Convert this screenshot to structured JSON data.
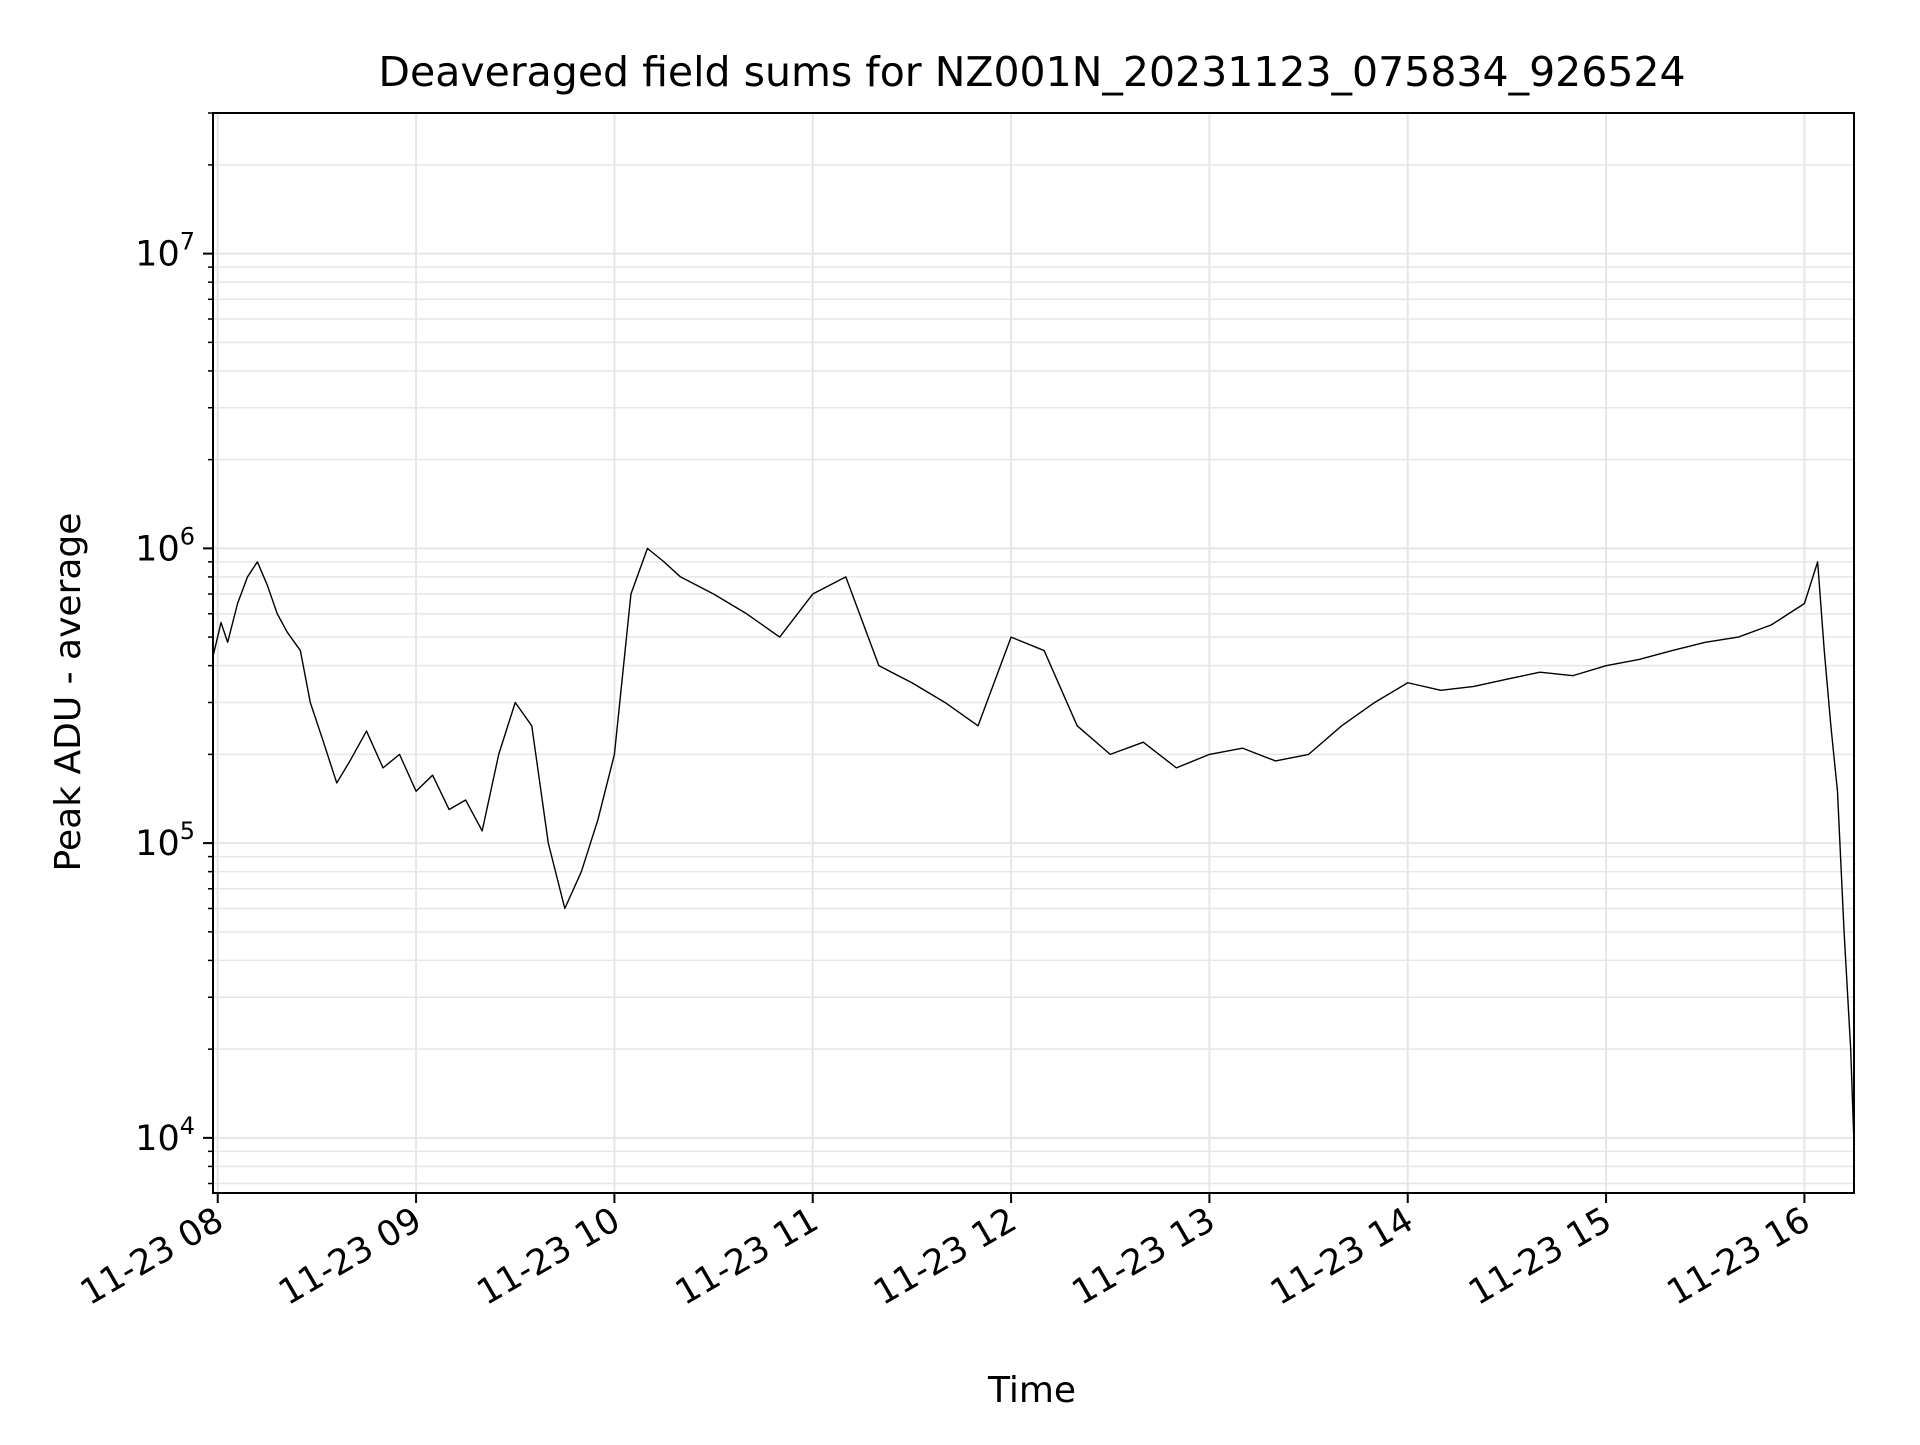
{
  "chart_data": {
    "type": "line",
    "title": "Deaveraged field sums for NZ001N_20231123_075834_926524",
    "xlabel": "Time",
    "ylabel": "Peak ADU - average",
    "yscale": "log",
    "ylim": [
      6500,
      30000000
    ],
    "xlim": [
      "2023-11-23 07:58:34",
      "2023-11-23 16:15:00"
    ],
    "x_ticks": [
      {
        "value": "2023-11-23 08:00",
        "label": "11-23 08"
      },
      {
        "value": "2023-11-23 09:00",
        "label": "11-23 09"
      },
      {
        "value": "2023-11-23 10:00",
        "label": "11-23 10"
      },
      {
        "value": "2023-11-23 11:00",
        "label": "11-23 11"
      },
      {
        "value": "2023-11-23 12:00",
        "label": "11-23 12"
      },
      {
        "value": "2023-11-23 13:00",
        "label": "11-23 13"
      },
      {
        "value": "2023-11-23 14:00",
        "label": "11-23 14"
      },
      {
        "value": "2023-11-23 15:00",
        "label": "11-23 15"
      },
      {
        "value": "2023-11-23 16:00",
        "label": "11-23 16"
      }
    ],
    "y_ticks": [
      {
        "value": 10000,
        "base": "10",
        "exp": "4"
      },
      {
        "value": 100000,
        "base": "10",
        "exp": "5"
      },
      {
        "value": 1000000,
        "base": "10",
        "exp": "6"
      },
      {
        "value": 10000000,
        "base": "10",
        "exp": "7"
      }
    ],
    "grid": true,
    "line_color": "#000000",
    "grid_color": "#e6e6e6",
    "series": [
      {
        "points": [
          [
            "2023-11-23 07:58:34",
            430000
          ],
          [
            "2023-11-23 08:01",
            560000
          ],
          [
            "2023-11-23 08:03",
            480000
          ],
          [
            "2023-11-23 08:06",
            650000
          ],
          [
            "2023-11-23 08:09",
            800000
          ],
          [
            "2023-11-23 08:12",
            900000
          ],
          [
            "2023-11-23 08:15",
            750000
          ],
          [
            "2023-11-23 08:18",
            600000
          ],
          [
            "2023-11-23 08:21",
            520000
          ],
          [
            "2023-11-23 08:25",
            450000
          ],
          [
            "2023-11-23 08:28",
            300000
          ],
          [
            "2023-11-23 08:32",
            220000
          ],
          [
            "2023-11-23 08:36",
            160000
          ],
          [
            "2023-11-23 08:40",
            190000
          ],
          [
            "2023-11-23 08:45",
            240000
          ],
          [
            "2023-11-23 08:50",
            180000
          ],
          [
            "2023-11-23 08:55",
            200000
          ],
          [
            "2023-11-23 09:00",
            150000
          ],
          [
            "2023-11-23 09:05",
            170000
          ],
          [
            "2023-11-23 09:10",
            130000
          ],
          [
            "2023-11-23 09:15",
            140000
          ],
          [
            "2023-11-23 09:20",
            110000
          ],
          [
            "2023-11-23 09:25",
            200000
          ],
          [
            "2023-11-23 09:30",
            300000
          ],
          [
            "2023-11-23 09:35",
            250000
          ],
          [
            "2023-11-23 09:40",
            100000
          ],
          [
            "2023-11-23 09:45",
            60000
          ],
          [
            "2023-11-23 09:50",
            80000
          ],
          [
            "2023-11-23 09:55",
            120000
          ],
          [
            "2023-11-23 10:00",
            200000
          ],
          [
            "2023-11-23 10:05",
            700000
          ],
          [
            "2023-11-23 10:10",
            1000000
          ],
          [
            "2023-11-23 10:15",
            900000
          ],
          [
            "2023-11-23 10:20",
            800000
          ],
          [
            "2023-11-23 10:30",
            700000
          ],
          [
            "2023-11-23 10:40",
            600000
          ],
          [
            "2023-11-23 10:50",
            500000
          ],
          [
            "2023-11-23 11:00",
            700000
          ],
          [
            "2023-11-23 11:10",
            800000
          ],
          [
            "2023-11-23 11:20",
            400000
          ],
          [
            "2023-11-23 11:30",
            350000
          ],
          [
            "2023-11-23 11:40",
            300000
          ],
          [
            "2023-11-23 11:50",
            250000
          ],
          [
            "2023-11-23 12:00",
            500000
          ],
          [
            "2023-11-23 12:10",
            450000
          ],
          [
            "2023-11-23 12:20",
            250000
          ],
          [
            "2023-11-23 12:30",
            200000
          ],
          [
            "2023-11-23 12:40",
            220000
          ],
          [
            "2023-11-23 12:50",
            180000
          ],
          [
            "2023-11-23 13:00",
            200000
          ],
          [
            "2023-11-23 13:10",
            210000
          ],
          [
            "2023-11-23 13:20",
            190000
          ],
          [
            "2023-11-23 13:30",
            200000
          ],
          [
            "2023-11-23 13:40",
            250000
          ],
          [
            "2023-11-23 13:50",
            300000
          ],
          [
            "2023-11-23 14:00",
            350000
          ],
          [
            "2023-11-23 14:10",
            330000
          ],
          [
            "2023-11-23 14:20",
            340000
          ],
          [
            "2023-11-23 14:30",
            360000
          ],
          [
            "2023-11-23 14:40",
            380000
          ],
          [
            "2023-11-23 14:50",
            370000
          ],
          [
            "2023-11-23 15:00",
            400000
          ],
          [
            "2023-11-23 15:10",
            420000
          ],
          [
            "2023-11-23 15:20",
            450000
          ],
          [
            "2023-11-23 15:30",
            480000
          ],
          [
            "2023-11-23 15:40",
            500000
          ],
          [
            "2023-11-23 15:50",
            550000
          ],
          [
            "2023-11-23 16:00",
            650000
          ],
          [
            "2023-11-23 16:04",
            900000
          ],
          [
            "2023-11-23 16:06",
            450000
          ],
          [
            "2023-11-23 16:08",
            250000
          ],
          [
            "2023-11-23 16:10",
            150000
          ],
          [
            "2023-11-23 16:12",
            50000
          ],
          [
            "2023-11-23 16:14",
            20000
          ],
          [
            "2023-11-23 16:15",
            9500
          ]
        ]
      }
    ]
  }
}
